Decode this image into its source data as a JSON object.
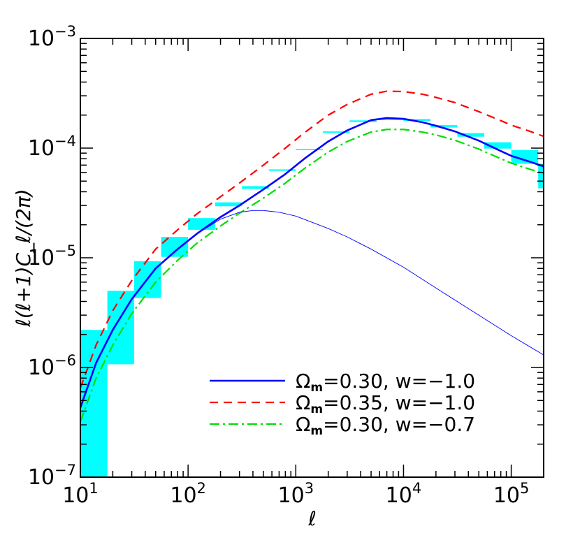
{
  "chart_data": {
    "type": "line",
    "xlabel": "ℓ",
    "ylabel": "ℓ(ℓ+1)C_ℓ/(2π)",
    "x_scale": "log",
    "y_scale": "log",
    "xlim": [
      10,
      200000
    ],
    "ylim": [
      1e-07,
      0.001
    ],
    "x_ticks": [
      {
        "base": "10",
        "exp": "1",
        "value": 10
      },
      {
        "base": "10",
        "exp": "2",
        "value": 100
      },
      {
        "base": "10",
        "exp": "3",
        "value": 1000
      },
      {
        "base": "10",
        "exp": "4",
        "value": 10000
      },
      {
        "base": "10",
        "exp": "5",
        "value": 100000
      }
    ],
    "y_ticks": [
      {
        "base": "10",
        "exp": "−7",
        "value": 1e-07
      },
      {
        "base": "10",
        "exp": "−6",
        "value": 1e-06
      },
      {
        "base": "10",
        "exp": "−5",
        "value": 1e-05
      },
      {
        "base": "10",
        "exp": "−4",
        "value": 0.0001
      },
      {
        "base": "10",
        "exp": "−3",
        "value": 0.001
      }
    ],
    "legend_position": "bottom-right",
    "error_boxes": {
      "color": "#00ffff",
      "bins": [
        {
          "x_low": 10,
          "x_high": 17.8,
          "y_low": 1e-07,
          "y_high": 2.2e-06
        },
        {
          "x_low": 17.8,
          "x_high": 31.6,
          "y_low": 1.07e-06,
          "y_high": 5e-06
        },
        {
          "x_low": 31.6,
          "x_high": 56.2,
          "y_low": 4.3e-06,
          "y_high": 9.3e-06
        },
        {
          "x_low": 56.2,
          "x_high": 100,
          "y_low": 1.02e-05,
          "y_high": 1.55e-05
        },
        {
          "x_low": 100,
          "x_high": 178,
          "y_low": 1.8e-05,
          "y_high": 2.3e-05
        },
        {
          "x_low": 178,
          "x_high": 316,
          "y_low": 2.95e-05,
          "y_high": 3.2e-05
        },
        {
          "x_low": 316,
          "x_high": 562,
          "y_low": 4.25e-05,
          "y_high": 4.5e-05
        },
        {
          "x_low": 562,
          "x_high": 1000,
          "y_low": 6.2e-05,
          "y_high": 6.4e-05
        },
        {
          "x_low": 1000,
          "x_high": 1780,
          "y_low": 9.6e-05,
          "y_high": 9.85e-05
        },
        {
          "x_low": 1780,
          "x_high": 3160,
          "y_low": 0.000138,
          "y_high": 0.000142
        },
        {
          "x_low": 3160,
          "x_high": 5620,
          "y_low": 0.000173,
          "y_high": 0.000179
        },
        {
          "x_low": 5620,
          "x_high": 10000,
          "y_low": 0.00018,
          "y_high": 0.000186
        },
        {
          "x_low": 10000,
          "x_high": 17800,
          "y_low": 0.000177,
          "y_high": 0.000184
        },
        {
          "x_low": 17800,
          "x_high": 31600,
          "y_low": 0.000154,
          "y_high": 0.000162
        },
        {
          "x_low": 31600,
          "x_high": 56200,
          "y_low": 0.000127,
          "y_high": 0.000137
        },
        {
          "x_low": 56200,
          "x_high": 100000,
          "y_low": 9.9e-05,
          "y_high": 0.000113
        },
        {
          "x_low": 100000,
          "x_high": 178000,
          "y_low": 7.2e-05,
          "y_high": 9.6e-05
        },
        {
          "x_low": 178000,
          "x_high": 200000,
          "y_low": 4.3e-05,
          "y_high": 7.2e-05
        }
      ]
    },
    "series": [
      {
        "name": "Ω_m=0.30,  w=−1.0",
        "legend_main": "Ω",
        "legend_sub": "m",
        "legend_rest": "=0.30,  w=−1.0",
        "color": "#0000ff",
        "style": "solid",
        "width": 2.6,
        "x": [
          10,
          14,
          20,
          30,
          50,
          80,
          120,
          200,
          300,
          500,
          800,
          1200,
          2000,
          3000,
          5000,
          7000,
          10000,
          15000,
          20000,
          30000,
          50000,
          80000,
          100000,
          150000,
          200000
        ],
        "y": [
          4.3e-07,
          1.1e-06,
          2.2e-06,
          4.2e-06,
          8e-06,
          1.2e-05,
          1.65e-05,
          2.35e-05,
          3e-05,
          4.2e-05,
          5.8e-05,
          8e-05,
          0.000115,
          0.000145,
          0.00018,
          0.000188,
          0.000185,
          0.000172,
          0.00016,
          0.000142,
          0.000117,
          9.4e-05,
          8.5e-05,
          7.5e-05,
          6.8e-05
        ]
      },
      {
        "name": "Ω_m=0.35,  w=−1.0",
        "legend_main": "Ω",
        "legend_sub": "m",
        "legend_rest": "=0.35,  w=−1.0",
        "color": "#ff0000",
        "style": "dashed",
        "width": 2.2,
        "x": [
          10,
          14,
          20,
          30,
          50,
          80,
          120,
          200,
          300,
          500,
          800,
          1200,
          2000,
          3000,
          5000,
          7000,
          10000,
          15000,
          20000,
          30000,
          50000,
          80000,
          100000,
          150000,
          200000
        ],
        "y": [
          6.5e-07,
          1.6e-06,
          3.3e-06,
          6.2e-06,
          1.2e-05,
          1.8e-05,
          2.5e-05,
          3.6e-05,
          4.8e-05,
          7e-05,
          0.0001,
          0.000138,
          0.0002,
          0.00025,
          0.00031,
          0.00033,
          0.000328,
          0.00031,
          0.00029,
          0.00026,
          0.000215,
          0.000178,
          0.000162,
          0.000142,
          0.000128
        ]
      },
      {
        "name": "Ω_m=0.30,  w=−0.7",
        "legend_main": "Ω",
        "legend_sub": "m",
        "legend_rest": "=0.30,  w=−0.7",
        "color": "#00dd00",
        "style": "dashdot",
        "width": 2.2,
        "x": [
          10,
          14,
          20,
          30,
          50,
          80,
          120,
          200,
          300,
          500,
          800,
          1200,
          2000,
          3000,
          5000,
          7000,
          10000,
          15000,
          20000,
          30000,
          50000,
          80000,
          100000,
          150000,
          200000
        ],
        "y": [
          3.2e-07,
          8e-07,
          1.6e-06,
          3.1e-06,
          6e-06,
          9.5e-06,
          1.35e-05,
          1.95e-05,
          2.55e-05,
          3.5e-05,
          4.8e-05,
          6.5e-05,
          9.2e-05,
          0.000115,
          0.00014,
          0.000148,
          0.000148,
          0.00014,
          0.000132,
          0.000118,
          9.8e-05,
          8e-05,
          7.3e-05,
          6.4e-05,
          5.9e-05
        ]
      },
      {
        "name": "",
        "color": "#0000ff",
        "style": "thin",
        "width": 0.9,
        "x": [
          10,
          14,
          20,
          30,
          50,
          80,
          120,
          200,
          300,
          400,
          500,
          700,
          1000,
          2000,
          3000,
          5000,
          10000,
          20000,
          50000,
          100000,
          200000
        ],
        "y": [
          4.3e-07,
          1.1e-06,
          2.2e-06,
          4.2e-06,
          8e-06,
          1.2e-05,
          1.65e-05,
          2.25e-05,
          2.6e-05,
          2.7e-05,
          2.7e-05,
          2.6e-05,
          2.4e-05,
          1.85e-05,
          1.55e-05,
          1.2e-05,
          8.2e-06,
          5.3e-06,
          3e-06,
          1.95e-06,
          1.3e-06
        ]
      }
    ]
  }
}
